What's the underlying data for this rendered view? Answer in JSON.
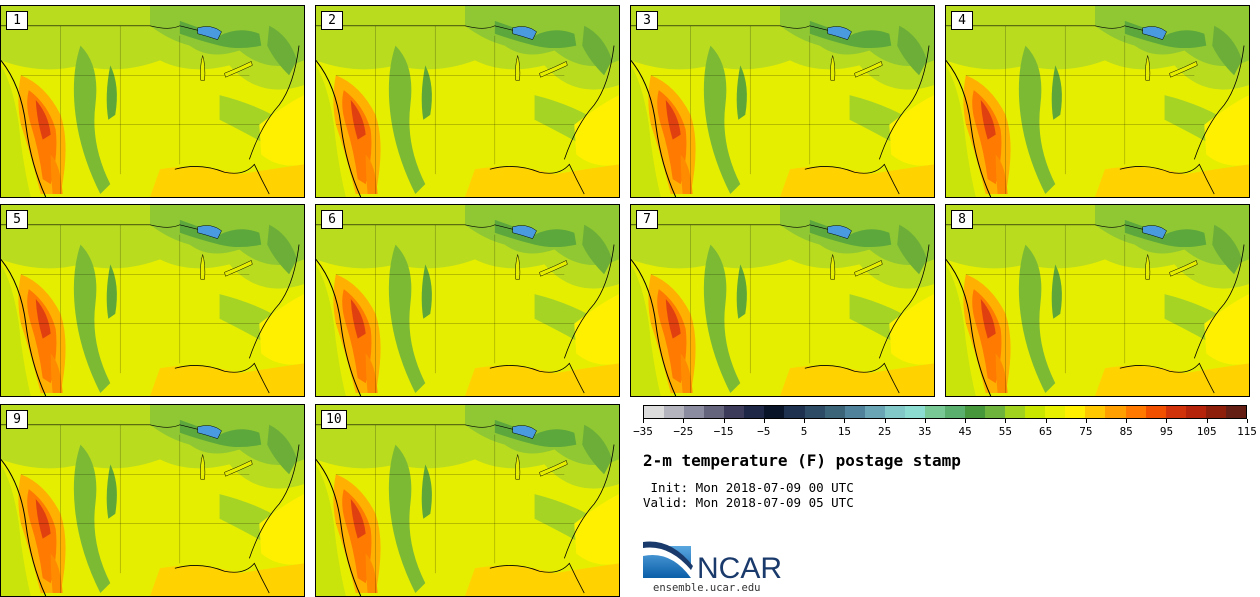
{
  "panels": [
    {
      "label": "1"
    },
    {
      "label": "2"
    },
    {
      "label": "3"
    },
    {
      "label": "4"
    },
    {
      "label": "5"
    },
    {
      "label": "6"
    },
    {
      "label": "7"
    },
    {
      "label": "8"
    },
    {
      "label": "9"
    },
    {
      "label": "10"
    }
  ],
  "colorbar": {
    "colors": [
      "#dcdcdc",
      "#b4b4be",
      "#8c8ca0",
      "#64647d",
      "#3c3c5a",
      "#1e2846",
      "#0a1428",
      "#1e3250",
      "#2d4b64",
      "#3c6478",
      "#50829b",
      "#69a5b4",
      "#82c8c8",
      "#8cdcd2",
      "#78c896",
      "#5aaf6e",
      "#46963c",
      "#6eb43c",
      "#a0d21e",
      "#c8e600",
      "#e6f000",
      "#fff000",
      "#ffc800",
      "#ffa000",
      "#ff7800",
      "#f05000",
      "#d2320a",
      "#b4230a",
      "#8c1e0a",
      "#641e14"
    ],
    "tick_labels": [
      "−35",
      "−25",
      "−15",
      "−5",
      "5",
      "15",
      "25",
      "35",
      "45",
      "55",
      "65",
      "75",
      "85",
      "95",
      "105",
      "115"
    ]
  },
  "title": "2-m temperature (F) postage stamp",
  "init": " Init: Mon 2018-07-09 00 UTC",
  "valid": "Valid: Mon 2018-07-09 05 UTC",
  "logo": {
    "text": "NCAR",
    "url_text": "ensemble.ucar.edu",
    "color": "#1a3a6b",
    "accent": "#2b7bbf"
  }
}
